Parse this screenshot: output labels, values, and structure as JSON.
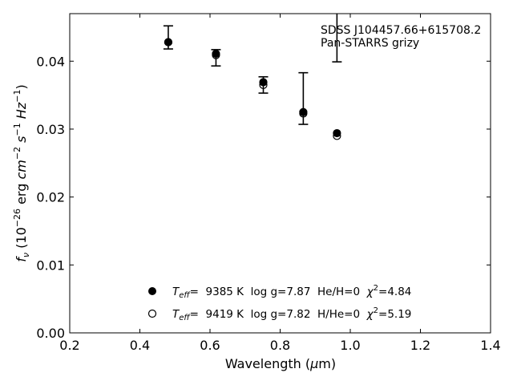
{
  "chart_data": {
    "type": "scatter",
    "xlabel": {
      "main": "Wavelength (",
      "mu": "μ",
      "unit": "m)"
    },
    "ylabel": {
      "f": "f",
      "nu": "ν",
      "p1": " (10",
      "e1": "−26",
      "p2": " erg ",
      "cm": "cm",
      "e2": "−2",
      "s": " s",
      "e3": "−1",
      "hz": " Hz",
      "e4": "−1",
      "close": ")"
    },
    "xlim": [
      0.2,
      1.4
    ],
    "ylim": [
      0.0,
      0.047
    ],
    "xticks": [
      0.2,
      0.4,
      0.6,
      0.8,
      1.0,
      1.2,
      1.4
    ],
    "xtick_labels": [
      "0.2",
      "0.4",
      "0.6",
      "0.8",
      "1.0",
      "1.2",
      "1.4"
    ],
    "yticks": [
      0.0,
      0.01,
      0.02,
      0.03,
      0.04
    ],
    "ytick_labels": [
      "0.00",
      "0.01",
      "0.02",
      "0.03",
      "0.04"
    ],
    "annotation_lines": [
      "SDSS J104457.66+615708.2",
      "Pan-STARRS grizy"
    ],
    "observed": {
      "x": [
        0.481,
        0.617,
        0.752,
        0.866,
        0.962
      ],
      "y": [
        0.0435,
        0.0405,
        0.0365,
        0.0345,
        0.0492
      ],
      "yerr_low": [
        0.0017,
        0.0012,
        0.0012,
        0.0038,
        0.0093
      ],
      "yerr_high": [
        0.0017,
        0.0012,
        0.0012,
        0.0038,
        0.0093
      ]
    },
    "series": [
      {
        "marker": "filled",
        "x": [
          0.481,
          0.617,
          0.752,
          0.866,
          0.962
        ],
        "y": [
          0.0428,
          0.0411,
          0.0369,
          0.0325,
          0.0294
        ],
        "legend": {
          "teff": "T",
          "teff_sub": "eff",
          "text": "=  9385 K  log g=7.87  He/H=0  ",
          "chi": "χ",
          "chi_sup": "2",
          "chi_val": "=4.84"
        }
      },
      {
        "marker": "open",
        "x": [
          0.481,
          0.617,
          0.752,
          0.866,
          0.962
        ],
        "y": [
          0.0428,
          0.0409,
          0.0365,
          0.0323,
          0.029
        ],
        "legend": {
          "teff": "T",
          "teff_sub": "eff",
          "text": "=  9419 K  log g=7.82  H/He=0  ",
          "chi": "χ",
          "chi_sup": "2",
          "chi_val": "=5.19"
        }
      }
    ]
  }
}
